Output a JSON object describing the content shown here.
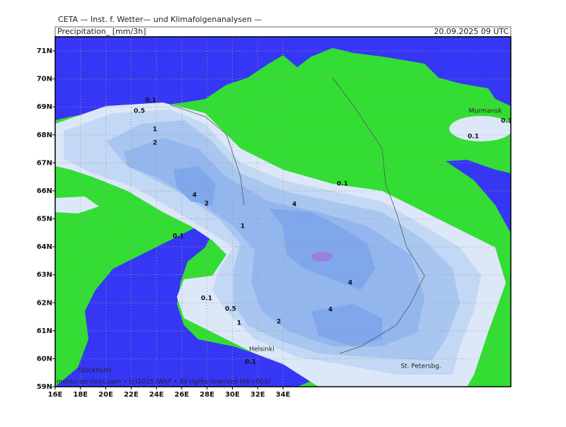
{
  "header": {
    "title": "CETA — Inst. f. Wetter— und Klimafolgenanalysen —",
    "parameter": "Precipitation_ [mm/3h]",
    "valid_time": "20.09.2025 09 UTC"
  },
  "map": {
    "lon_ticks": [
      "16E",
      "18E",
      "20E",
      "22E",
      "24E",
      "26E",
      "28E",
      "30E",
      "32E",
      "34E"
    ],
    "lat_ticks": [
      "59N",
      "60N",
      "61N",
      "62N",
      "63N",
      "64N",
      "65N",
      "66N",
      "67N",
      "68N",
      "69N",
      "70N",
      "71N"
    ],
    "places": [
      "Murmansk",
      "Helsinki",
      "Stockholm",
      "St. Petersbg."
    ],
    "contour_labels": [
      "0.1",
      "0.5",
      "1",
      "2",
      "4",
      "2",
      "0.1",
      "4",
      "1",
      "0.1",
      "0.1",
      "0.1",
      "4",
      "4",
      "0.1",
      "0.5",
      "1",
      "2",
      "0.1"
    ]
  },
  "footer": "meteo-services.com • (c)2025 IWKF • All rights reserved (06+003)"
}
